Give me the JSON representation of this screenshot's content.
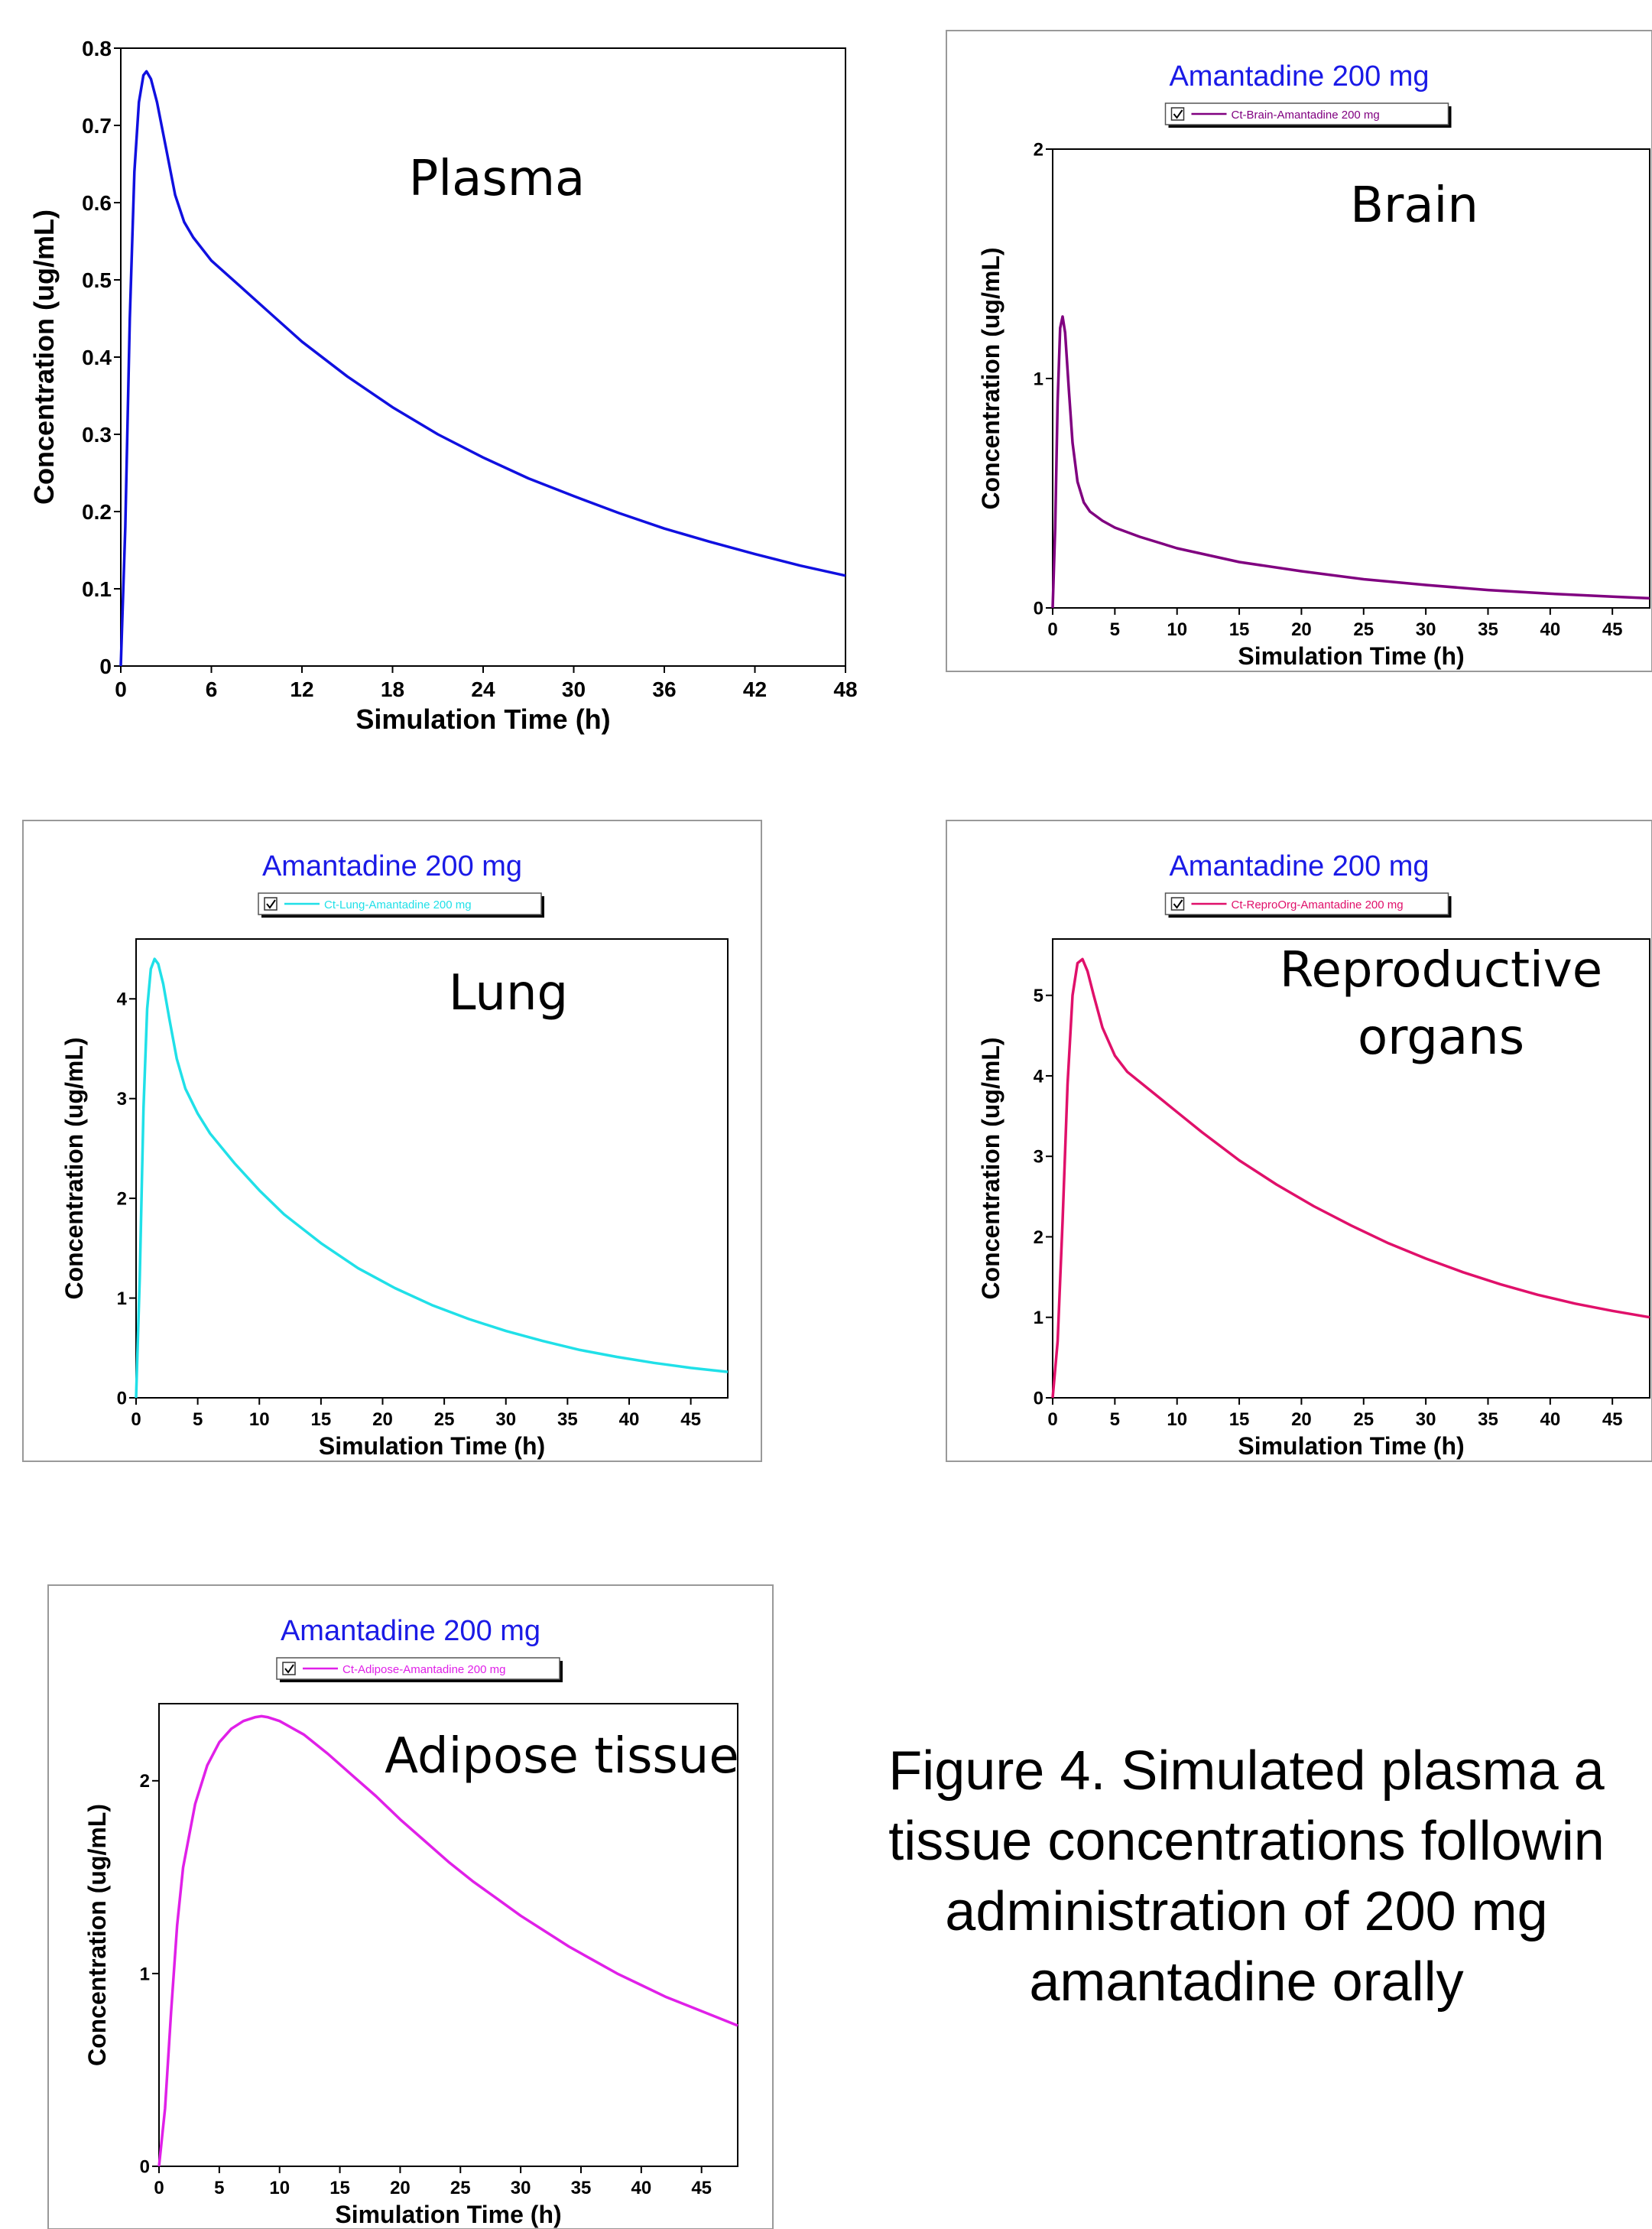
{
  "figure_caption": {
    "lines": [
      "Figure 4. Simulated plasma  a",
      "tissue concentrations followin",
      "administration of 200 mg",
      "amantadine  orally"
    ]
  },
  "chart_data": [
    {
      "type": "line",
      "id": "plasma",
      "title": "",
      "legend": null,
      "annotation": [
        "Plasma"
      ],
      "xlabel": "Simulation Time (h)",
      "ylabel": "Concentration (ug/mL)",
      "xlim": [
        0,
        48
      ],
      "ylim": [
        0,
        0.8
      ],
      "xticks": [
        0,
        6,
        12,
        18,
        24,
        30,
        36,
        42,
        48
      ],
      "xtick_labels": [
        "0",
        "6",
        "12",
        "18",
        "24",
        "30",
        "36",
        "42",
        "48"
      ],
      "yticks": [
        0,
        0.1,
        0.2,
        0.3,
        0.4,
        0.5,
        0.6,
        0.7,
        0.8
      ],
      "ytick_labels": [
        "0",
        "0.1",
        "0.2",
        "0.3",
        "0.4",
        "0.5",
        "0.6",
        "0.7",
        "0.8"
      ],
      "color": "#1010e0",
      "grid": false,
      "series": [
        {
          "x": [
            0,
            0.3,
            0.6,
            0.9,
            1.2,
            1.5,
            1.7,
            2.0,
            2.4,
            3.0,
            3.6,
            4.2,
            4.8,
            6,
            8,
            10,
            12,
            15,
            18,
            21,
            24,
            27,
            30,
            33,
            36,
            39,
            42,
            45,
            48
          ],
          "y": [
            0,
            0.18,
            0.45,
            0.64,
            0.73,
            0.765,
            0.77,
            0.76,
            0.73,
            0.67,
            0.61,
            0.575,
            0.555,
            0.525,
            0.49,
            0.455,
            0.42,
            0.375,
            0.335,
            0.3,
            0.27,
            0.243,
            0.22,
            0.198,
            0.178,
            0.161,
            0.145,
            0.13,
            0.117
          ]
        }
      ]
    },
    {
      "type": "line",
      "id": "brain",
      "title": "Amantadine 200 mg",
      "legend": "Ct-Brain-Amantadine 200 mg",
      "annotation": [
        "Brain"
      ],
      "xlabel": "Simulation Time (h)",
      "ylabel": "Concentration (ug/mL)",
      "xlim": [
        0,
        48
      ],
      "ylim": [
        0,
        2
      ],
      "xticks": [
        0,
        5,
        10,
        15,
        20,
        25,
        30,
        35,
        40,
        45
      ],
      "xtick_labels": [
        "0",
        "5",
        "10",
        "15",
        "20",
        "25",
        "30",
        "35",
        "40",
        "45"
      ],
      "yticks": [
        0,
        1,
        2
      ],
      "ytick_labels": [
        "0",
        "1",
        "2"
      ],
      "color": "#800080",
      "grid": false,
      "series": [
        {
          "name": "Ct-Brain-Amantadine 200 mg",
          "x": [
            0,
            0.2,
            0.4,
            0.6,
            0.8,
            1.0,
            1.3,
            1.6,
            2.0,
            2.5,
            3.0,
            4.0,
            5,
            7,
            10,
            15,
            20,
            25,
            30,
            35,
            40,
            45,
            48
          ],
          "y": [
            0,
            0.35,
            0.9,
            1.22,
            1.27,
            1.2,
            0.95,
            0.72,
            0.55,
            0.46,
            0.42,
            0.38,
            0.35,
            0.31,
            0.26,
            0.2,
            0.16,
            0.125,
            0.1,
            0.078,
            0.062,
            0.049,
            0.042
          ]
        }
      ]
    },
    {
      "type": "line",
      "id": "lung",
      "title": "Amantadine 200 mg",
      "legend": "Ct-Lung-Amantadine 200 mg",
      "annotation": [
        "Lung"
      ],
      "xlabel": "Simulation Time (h)",
      "ylabel": "Concentration (ug/mL)",
      "xlim": [
        0,
        48
      ],
      "ylim": [
        0,
        4.6
      ],
      "xticks": [
        0,
        5,
        10,
        15,
        20,
        25,
        30,
        35,
        40,
        45
      ],
      "xtick_labels": [
        "0",
        "5",
        "10",
        "15",
        "20",
        "25",
        "30",
        "35",
        "40",
        "45"
      ],
      "yticks": [
        0,
        1,
        2,
        3,
        4
      ],
      "ytick_labels": [
        "0",
        "1",
        "2",
        "3",
        "4"
      ],
      "color": "#20e0e8",
      "grid": false,
      "series": [
        {
          "name": "Ct-Lung-Amantadine 200 mg",
          "x": [
            0,
            0.3,
            0.6,
            0.9,
            1.2,
            1.5,
            1.8,
            2.2,
            2.7,
            3.3,
            4.0,
            5,
            6,
            8,
            10,
            12,
            15,
            18,
            21,
            24,
            27,
            30,
            33,
            36,
            39,
            42,
            45,
            48
          ],
          "y": [
            0,
            1.2,
            2.9,
            3.9,
            4.3,
            4.4,
            4.35,
            4.15,
            3.8,
            3.4,
            3.1,
            2.85,
            2.65,
            2.35,
            2.08,
            1.84,
            1.55,
            1.3,
            1.1,
            0.93,
            0.79,
            0.67,
            0.57,
            0.48,
            0.41,
            0.35,
            0.3,
            0.26
          ]
        }
      ]
    },
    {
      "type": "line",
      "id": "reproductive",
      "title": "Amantadine 200 mg",
      "legend": "Ct-ReproOrg-Amantadine 200 mg",
      "annotation": [
        "Reproductive",
        "organs"
      ],
      "xlabel": "Simulation Time (h)",
      "ylabel": "Concentration (ug/mL)",
      "xlim": [
        0,
        48
      ],
      "ylim": [
        0,
        5.7
      ],
      "xticks": [
        0,
        5,
        10,
        15,
        20,
        25,
        30,
        35,
        40,
        45
      ],
      "xtick_labels": [
        "0",
        "5",
        "10",
        "15",
        "20",
        "25",
        "30",
        "35",
        "40",
        "45"
      ],
      "yticks": [
        0,
        1,
        2,
        3,
        4,
        5
      ],
      "ytick_labels": [
        "0",
        "1",
        "2",
        "3",
        "4",
        "5"
      ],
      "color": "#e0106a",
      "grid": false,
      "series": [
        {
          "name": "Ct-ReproOrg-Amantadine 200 mg",
          "x": [
            0,
            0.4,
            0.8,
            1.2,
            1.6,
            2.0,
            2.4,
            2.8,
            3.3,
            4.0,
            5,
            6,
            8,
            10,
            12,
            15,
            18,
            21,
            24,
            27,
            30,
            33,
            36,
            39,
            42,
            45,
            48
          ],
          "y": [
            0,
            0.7,
            2.2,
            3.9,
            5.0,
            5.4,
            5.45,
            5.3,
            5.0,
            4.6,
            4.25,
            4.05,
            3.8,
            3.55,
            3.3,
            2.95,
            2.65,
            2.38,
            2.14,
            1.92,
            1.73,
            1.56,
            1.41,
            1.28,
            1.17,
            1.08,
            1.0
          ]
        }
      ]
    },
    {
      "type": "line",
      "id": "adipose",
      "title": "Amantadine 200 mg",
      "legend": "Ct-Adipose-Amantadine 200 mg",
      "annotation": [
        "Adipose tissue"
      ],
      "xlabel": "Simulation Time (h)",
      "ylabel": "Concentration (ug/mL)",
      "xlim": [
        0,
        48
      ],
      "ylim": [
        0,
        2.4
      ],
      "xticks": [
        0,
        5,
        10,
        15,
        20,
        25,
        30,
        35,
        40,
        45
      ],
      "xtick_labels": [
        "0",
        "5",
        "10",
        "15",
        "20",
        "25",
        "30",
        "35",
        "40",
        "45"
      ],
      "yticks": [
        0,
        1,
        2
      ],
      "ytick_labels": [
        "0",
        "1",
        "2"
      ],
      "color": "#e020e8",
      "grid": false,
      "series": [
        {
          "name": "Ct-Adipose-Amantadine 200 mg",
          "x": [
            0,
            0.5,
            1,
            1.5,
            2,
            3,
            4,
            5,
            6,
            7,
            8,
            8.5,
            9,
            10,
            12,
            14,
            16,
            18,
            20,
            22,
            24,
            26,
            28,
            30,
            32,
            34,
            36,
            38,
            40,
            42,
            44,
            46,
            48
          ],
          "y": [
            0,
            0.3,
            0.8,
            1.25,
            1.55,
            1.88,
            2.08,
            2.2,
            2.27,
            2.31,
            2.33,
            2.335,
            2.33,
            2.31,
            2.24,
            2.14,
            2.03,
            1.92,
            1.8,
            1.69,
            1.58,
            1.48,
            1.39,
            1.3,
            1.22,
            1.14,
            1.07,
            1.0,
            0.94,
            0.88,
            0.83,
            0.78,
            0.73
          ]
        }
      ]
    }
  ]
}
